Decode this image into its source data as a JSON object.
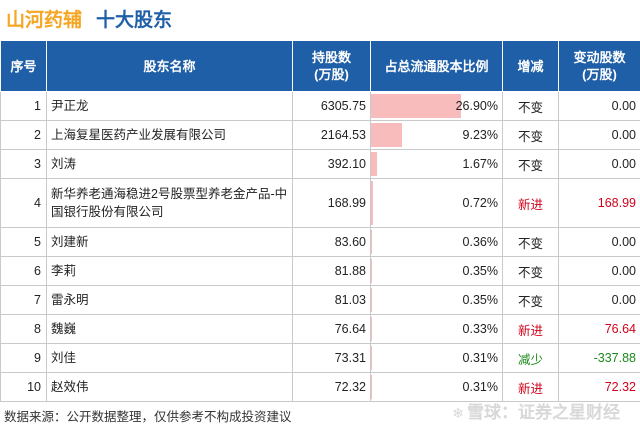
{
  "title": {
    "company": "山河药辅",
    "section": "十大股东"
  },
  "table": {
    "headers": {
      "rank": "序号",
      "name": "股东名称",
      "shares_l1": "持股数",
      "shares_l2": "(万股)",
      "pct": "占总流通股本比例",
      "change": "增减",
      "delta_l1": "变动股数",
      "delta_l2": "(万股)"
    },
    "rows": [
      {
        "rank": "1",
        "name": "尹正龙",
        "shares": "6305.75",
        "pct": "26.90%",
        "pct_value": 26.9,
        "change": "不变",
        "delta": "0.00"
      },
      {
        "rank": "2",
        "name": "上海复星医药产业发展有限公司",
        "shares": "2164.53",
        "pct": "9.23%",
        "pct_value": 9.23,
        "change": "不变",
        "delta": "0.00"
      },
      {
        "rank": "3",
        "name": "刘涛",
        "shares": "392.10",
        "pct": "1.67%",
        "pct_value": 1.67,
        "change": "不变",
        "delta": "0.00"
      },
      {
        "rank": "4",
        "name": "新华养老通海稳进2号股票型养老金产品-中国银行股份有限公司",
        "shares": "168.99",
        "pct": "0.72%",
        "pct_value": 0.72,
        "change": "新进",
        "delta": "168.99"
      },
      {
        "rank": "5",
        "name": "刘建新",
        "shares": "83.60",
        "pct": "0.36%",
        "pct_value": 0.36,
        "change": "不变",
        "delta": "0.00"
      },
      {
        "rank": "6",
        "name": "李莉",
        "shares": "81.88",
        "pct": "0.35%",
        "pct_value": 0.35,
        "change": "不变",
        "delta": "0.00"
      },
      {
        "rank": "7",
        "name": "雷永明",
        "shares": "81.03",
        "pct": "0.35%",
        "pct_value": 0.35,
        "change": "不变",
        "delta": "0.00"
      },
      {
        "rank": "8",
        "name": "魏巍",
        "shares": "76.64",
        "pct": "0.33%",
        "pct_value": 0.33,
        "change": "新进",
        "delta": "76.64"
      },
      {
        "rank": "9",
        "name": "刘佳",
        "shares": "73.31",
        "pct": "0.31%",
        "pct_value": 0.31,
        "change": "减少",
        "delta": "-337.88"
      },
      {
        "rank": "10",
        "name": "赵效伟",
        "shares": "72.32",
        "pct": "0.31%",
        "pct_value": 0.31,
        "change": "新进",
        "delta": "72.32"
      }
    ]
  },
  "footer": {
    "source": "数据来源：公开数据整理，仅供参考不构成投资建议",
    "brand": "雪球：证券之星财经"
  },
  "colors": {
    "primary": "#1f5fa8",
    "accent": "#f5a623",
    "bar": "#f8bcbc",
    "increase": "#d0021b",
    "decrease": "#1a8a1a"
  }
}
